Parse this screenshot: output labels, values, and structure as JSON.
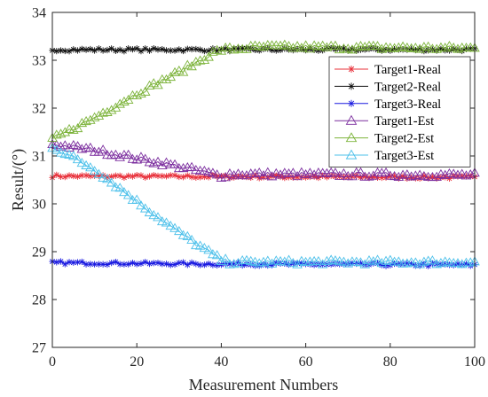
{
  "chart_data": {
    "type": "line",
    "xlabel": "Measurement Numbers",
    "ylabel": "Result/(°)",
    "xlim": [
      0,
      100
    ],
    "ylim": [
      27,
      34
    ],
    "xticks": [
      0,
      20,
      40,
      60,
      80,
      100
    ],
    "yticks": [
      27,
      28,
      29,
      30,
      31,
      32,
      33,
      34
    ],
    "grid": false,
    "legend_position": "center-right",
    "n_points": 101,
    "series": [
      {
        "name": "Target1-Real",
        "marker": "star",
        "color": "#e8303a",
        "keypoints": [
          [
            0,
            30.58
          ],
          [
            100,
            30.55
          ]
        ],
        "noise": 0.03
      },
      {
        "name": "Target2-Real",
        "marker": "star",
        "color": "#111111",
        "keypoints": [
          [
            0,
            33.22
          ],
          [
            100,
            33.22
          ]
        ],
        "noise": 0.03
      },
      {
        "name": "Target3-Real",
        "marker": "star",
        "color": "#1a1ae0",
        "keypoints": [
          [
            0,
            28.77
          ],
          [
            40,
            28.74
          ],
          [
            100,
            28.72
          ]
        ],
        "noise": 0.03
      },
      {
        "name": "Target1-Est",
        "marker": "triangle",
        "color": "#7b2d9e",
        "keypoints": [
          [
            0,
            31.25
          ],
          [
            10,
            31.12
          ],
          [
            20,
            30.95
          ],
          [
            30,
            30.78
          ],
          [
            40,
            30.58
          ],
          [
            42,
            30.62
          ],
          [
            100,
            30.6
          ]
        ],
        "noise": 0.05
      },
      {
        "name": "Target2-Est",
        "marker": "triangle",
        "color": "#7cb33a",
        "keypoints": [
          [
            0,
            31.35
          ],
          [
            10,
            31.8
          ],
          [
            20,
            32.3
          ],
          [
            30,
            32.75
          ],
          [
            38,
            33.15
          ],
          [
            40,
            33.22
          ],
          [
            50,
            33.28
          ],
          [
            100,
            33.25
          ]
        ],
        "noise": 0.05
      },
      {
        "name": "Target3-Est",
        "marker": "triangle",
        "color": "#4cc0ea",
        "keypoints": [
          [
            0,
            31.2
          ],
          [
            10,
            30.72
          ],
          [
            20,
            30.05
          ],
          [
            30,
            29.4
          ],
          [
            40,
            28.82
          ],
          [
            42,
            28.78
          ],
          [
            100,
            28.78
          ]
        ],
        "noise": 0.05
      }
    ]
  }
}
